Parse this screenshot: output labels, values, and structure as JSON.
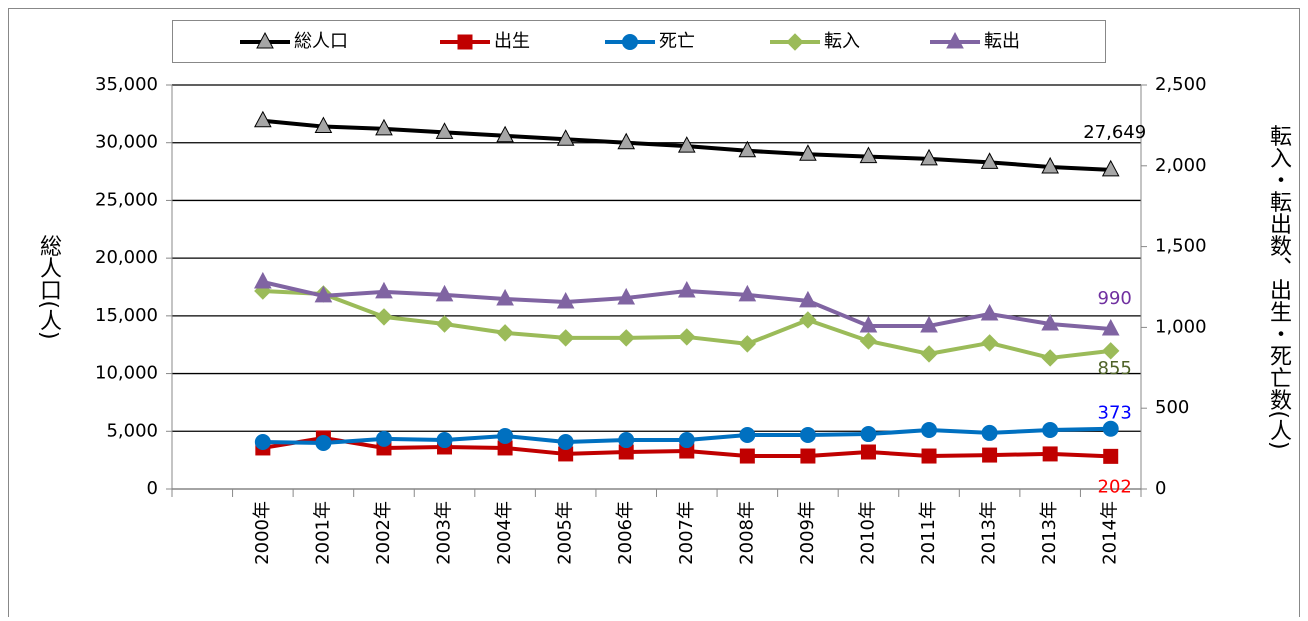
{
  "chart_data": {
    "type": "line",
    "categories": [
      null,
      "2000年",
      "2001年",
      "2002年",
      "2003年",
      "2004年",
      "2005年",
      "2006年",
      "2007年",
      "2008年",
      "2009年",
      "2010年",
      "2011年",
      "2013年",
      "2013年",
      "2014年"
    ],
    "y_label": "総人口(人)",
    "y2_label": "転入・転出数、出生・死亡数(人)",
    "ylim": [
      0,
      35000
    ],
    "yticks": [
      0,
      {
        "value": 5000,
        "label": "5,000"
      },
      {
        "value": 10000,
        "label": "10,000"
      },
      {
        "value": 15000,
        "label": "15,000"
      },
      {
        "value": 20000,
        "label": "20,000"
      },
      {
        "value": 25000,
        "label": "25,000"
      },
      {
        "value": 30000,
        "label": "30,000"
      },
      {
        "value": 35000,
        "label": "35,000"
      }
    ],
    "y2lim": [
      0,
      2500
    ],
    "y2ticks": [
      0,
      500,
      {
        "value": 1000,
        "label": "1,000"
      },
      {
        "value": 1500,
        "label": "1,500"
      },
      {
        "value": 2000,
        "label": "2,000"
      },
      {
        "value": 2500,
        "label": "2,500"
      }
    ],
    "grid": true,
    "legend": "top",
    "series": [
      {
        "name": "総人口",
        "color": "#000000",
        "marker": "triangle",
        "marker_color": "#a6a6a6",
        "label_color": "#000000",
        "values": [
          null,
          31900,
          31400,
          31200,
          30900,
          30600,
          30300,
          30000,
          29700,
          29300,
          29000,
          28800,
          28600,
          28300,
          27900,
          27649
        ],
        "value_labels": [
          null,
          null,
          null,
          null,
          null,
          null,
          null,
          null,
          null,
          null,
          null,
          null,
          null,
          null,
          null,
          "27,649"
        ]
      },
      {
        "name": "出生",
        "color": "#c00000",
        "marker": "square",
        "marker_color": "#c00000",
        "label_color": "#ff0000",
        "axis": "y2",
        "values": [
          null,
          254,
          316,
          254,
          260,
          254,
          217,
          229,
          235,
          204,
          204,
          229,
          204,
          210,
          217,
          202
        ]
      },
      {
        "name": "死亡",
        "color": "#0070c0",
        "marker": "circle",
        "marker_color": "#0070c0",
        "label_color": "#0000ff",
        "axis": "y2",
        "values": [
          null,
          291,
          285,
          310,
          303,
          328,
          291,
          303,
          303,
          334,
          334,
          340,
          365,
          347,
          365,
          373
        ]
      },
      {
        "name": "転入",
        "color": "#9bbb59",
        "marker": "diamond",
        "marker_color": "#9bbb59",
        "label_color": "#4f6228",
        "axis": "y2",
        "values": [
          null,
          1225,
          1207,
          1065,
          1021,
          966,
          935,
          935,
          941,
          898,
          1046,
          916,
          836,
          904,
          811,
          855
        ]
      },
      {
        "name": "転出",
        "color": "#8064a2",
        "marker": "triangle",
        "marker_color": "#8064a2",
        "label_color": "#7030a0",
        "axis": "y2",
        "values": [
          null,
          1281,
          1195,
          1220,
          1201,
          1176,
          1157,
          1182,
          1225,
          1201,
          1164,
          1009,
          1009,
          1083,
          1021,
          990
        ]
      }
    ]
  }
}
